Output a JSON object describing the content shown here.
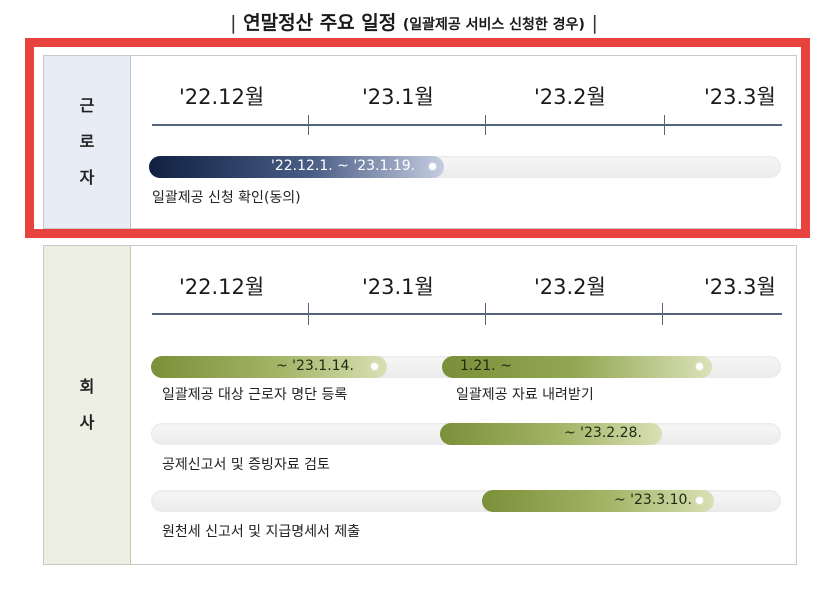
{
  "title": {
    "bar_left": "|",
    "main": "연말정산 주요 일정",
    "sub": "(일괄제공 서비스 신청한 경우)",
    "bar_right": "|"
  },
  "months": [
    "'22.12월",
    "'23.1월",
    "'23.2월",
    "'23.3월"
  ],
  "worker": {
    "label_chars": [
      "근",
      "로",
      "자"
    ],
    "bars": [
      {
        "period": "'22.12.1. ~ '23.1.19.",
        "task": "일괄제공 신청 확인(동의)"
      }
    ]
  },
  "company": {
    "label_chars": [
      "회",
      "사"
    ],
    "bars": [
      {
        "period": "~ '23.1.14.",
        "task": "일괄제공 대상 근로자 명단 등록"
      },
      {
        "period": "1.21. ~",
        "task": "일괄제공 자료 내려받기"
      },
      {
        "period": "~ '23.2.28.",
        "task": "공제신고서 및 증빙자료 검토"
      },
      {
        "period": "~ '23.3.10.",
        "task": "원천세 신고서 및 지급명세서 제출"
      }
    ]
  },
  "colors": {
    "highlight": "#e8423f",
    "worker_bar": "#0f2042",
    "company_bar": "#7b9039",
    "axis": "#55657c"
  }
}
